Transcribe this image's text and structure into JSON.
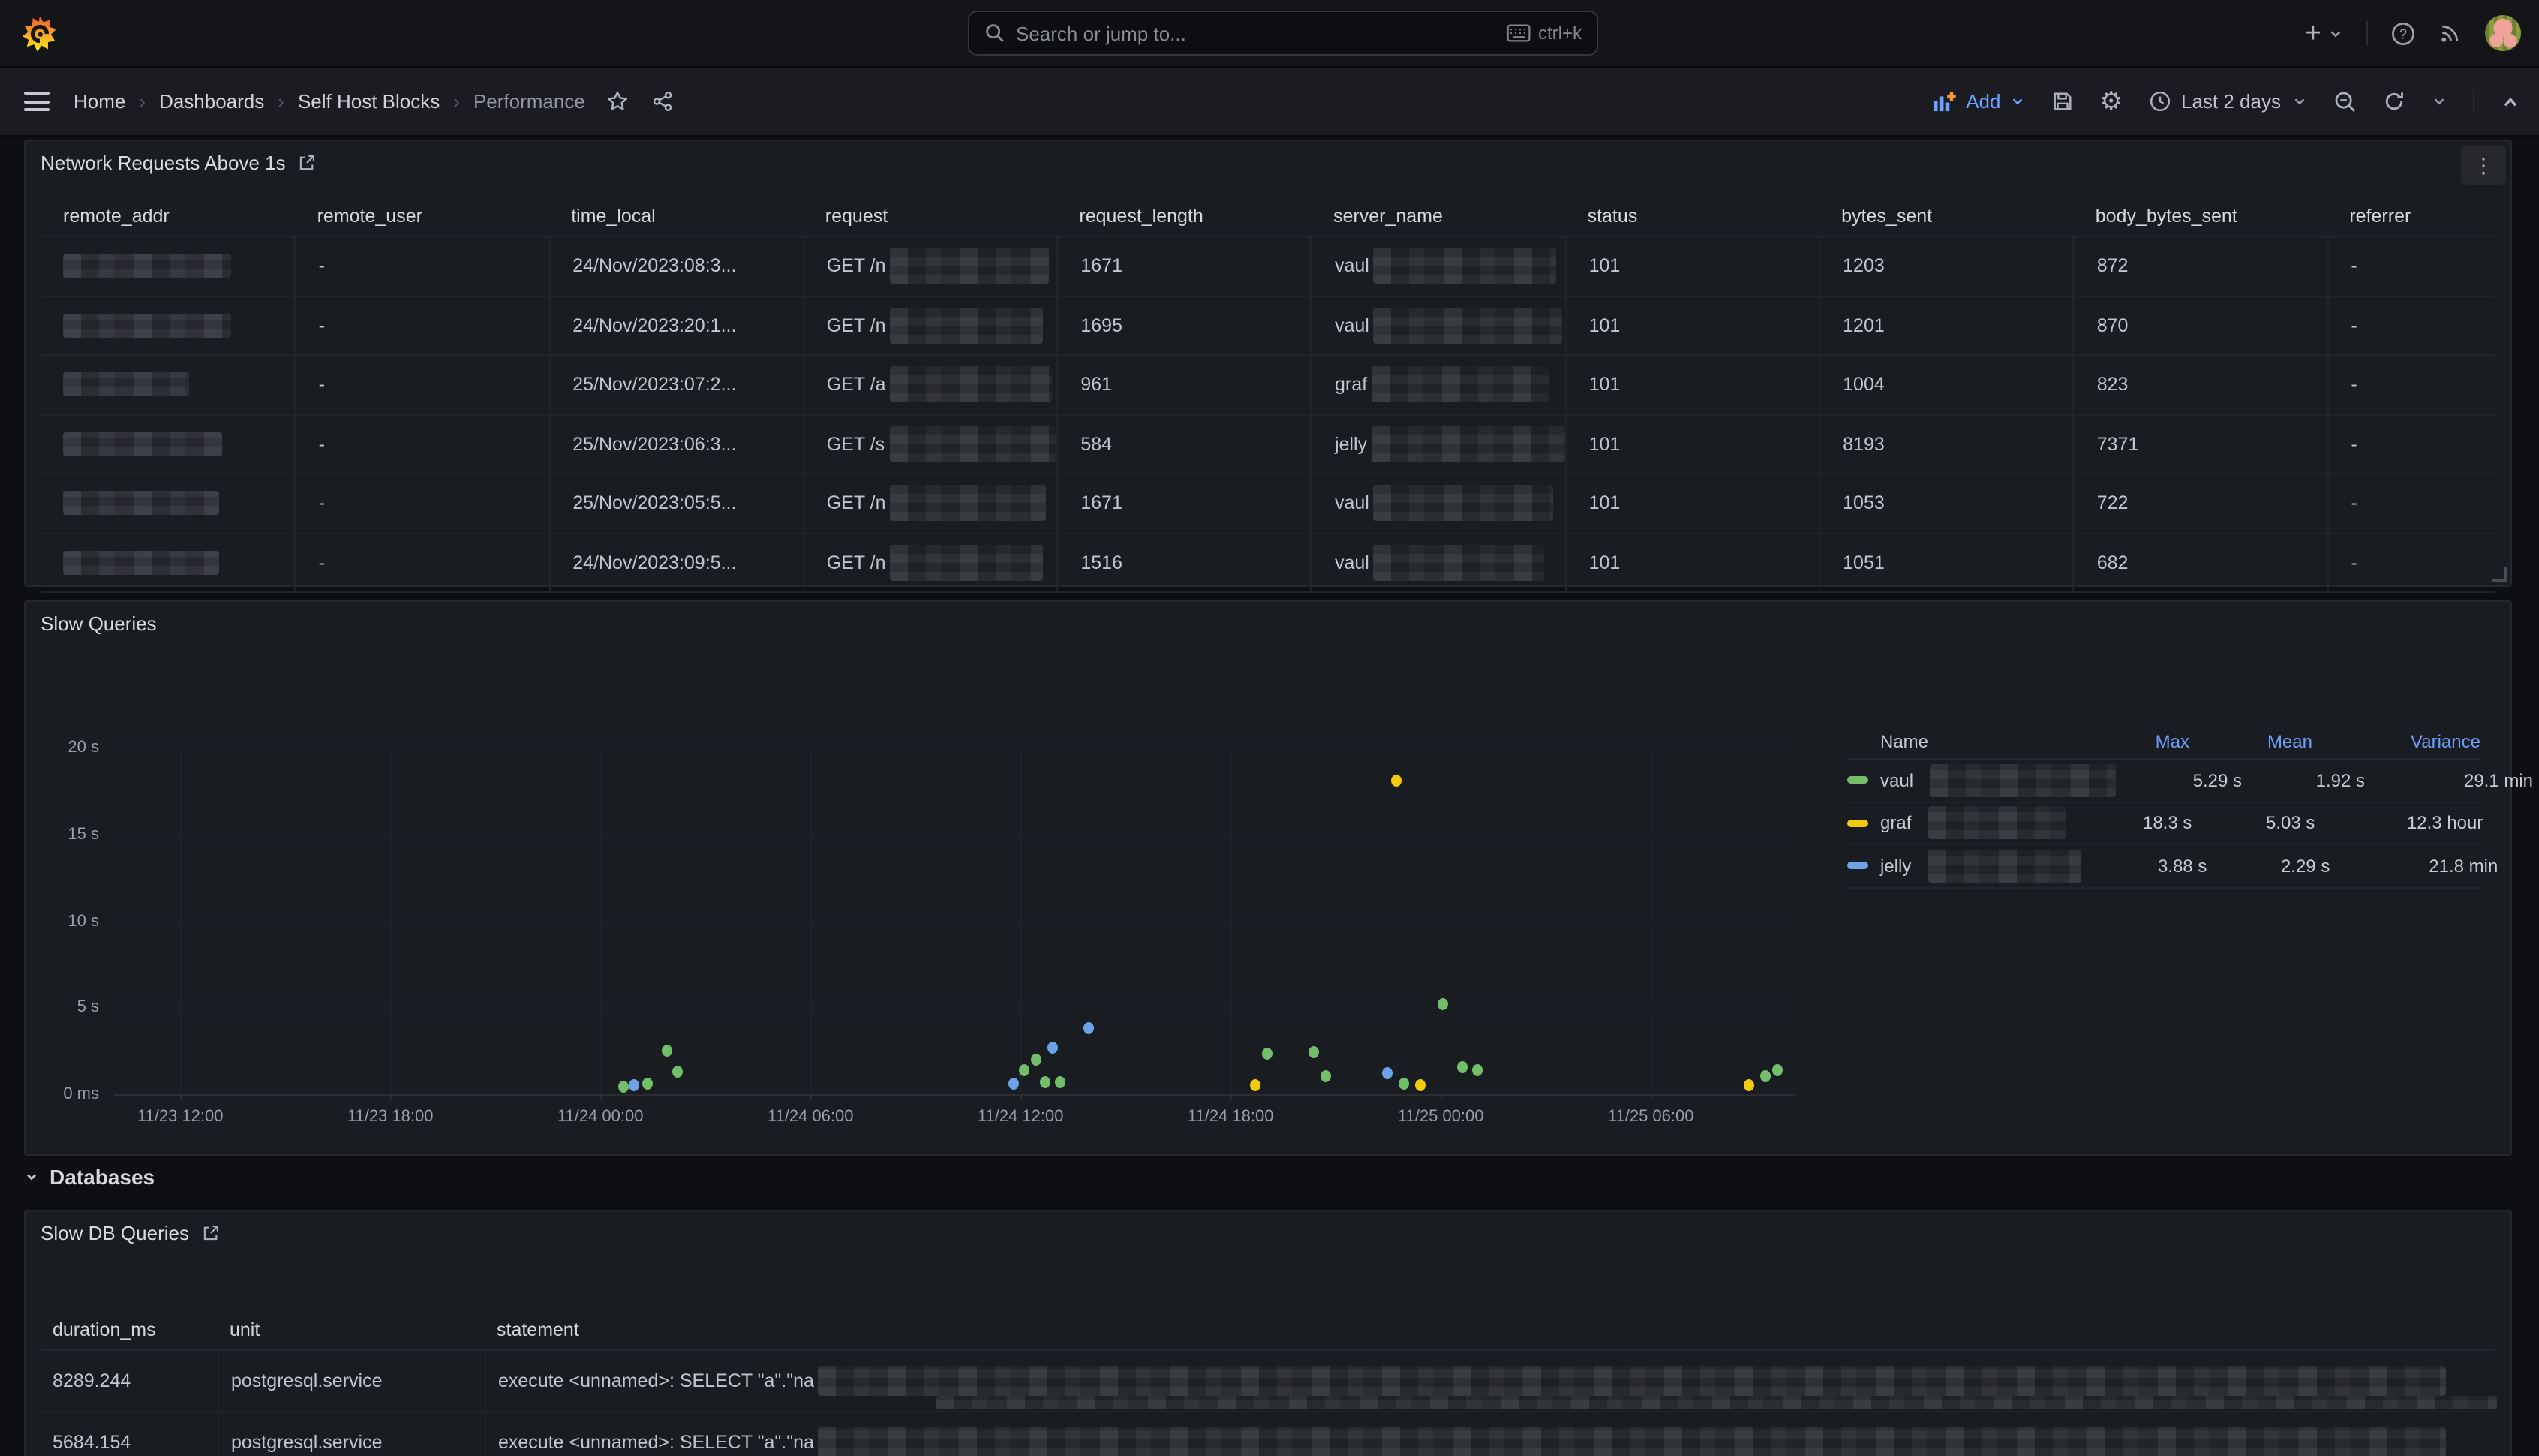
{
  "topbar": {
    "search_placeholder": "Search or jump to...",
    "search_shortcut": "ctrl+k"
  },
  "toolbar": {
    "breadcrumbs": [
      "Home",
      "Dashboards",
      "Self Host Blocks",
      "Performance"
    ],
    "add_label": "Add",
    "time_range": "Last 2 days"
  },
  "network_panel": {
    "title": "Network Requests Above 1s",
    "columns": [
      "remote_addr",
      "remote_user",
      "time_local",
      "request",
      "request_length",
      "server_name",
      "status",
      "bytes_sent",
      "body_bytes_sent",
      "referrer"
    ],
    "rows": [
      {
        "remote_addr_redacted": true,
        "addr_w": 112,
        "remote_user": "-",
        "time_local": "24/Nov/2023:08:3...",
        "request": "GET /n",
        "req_w": 106,
        "request_length": "1671",
        "server_name": "vaul",
        "srv_w": 122,
        "status": "101",
        "bytes_sent": "1203",
        "body_bytes_sent": "872",
        "referrer": "-"
      },
      {
        "remote_addr_redacted": true,
        "addr_w": 112,
        "remote_user": "-",
        "time_local": "24/Nov/2023:20:1...",
        "request": "GET /n",
        "req_w": 102,
        "request_length": "1695",
        "server_name": "vaul",
        "srv_w": 126,
        "status": "101",
        "bytes_sent": "1201",
        "body_bytes_sent": "870",
        "referrer": "-"
      },
      {
        "remote_addr_redacted": true,
        "addr_w": 84,
        "remote_user": "-",
        "time_local": "25/Nov/2023:07:2...",
        "request": "GET /a",
        "req_w": 108,
        "request_length": "961",
        "server_name": "graf",
        "srv_w": 118,
        "status": "101",
        "bytes_sent": "1004",
        "body_bytes_sent": "823",
        "referrer": "-"
      },
      {
        "remote_addr_redacted": true,
        "addr_w": 106,
        "remote_user": "-",
        "time_local": "25/Nov/2023:06:3...",
        "request": "GET /s",
        "req_w": 112,
        "request_length": "584",
        "server_name": "jelly",
        "srv_w": 132,
        "status": "101",
        "bytes_sent": "8193",
        "body_bytes_sent": "7371",
        "referrer": "-"
      },
      {
        "remote_addr_redacted": true,
        "addr_w": 104,
        "remote_user": "-",
        "time_local": "25/Nov/2023:05:5...",
        "request": "GET /n",
        "req_w": 104,
        "request_length": "1671",
        "server_name": "vaul",
        "srv_w": 120,
        "status": "101",
        "bytes_sent": "1053",
        "body_bytes_sent": "722",
        "referrer": "-"
      },
      {
        "remote_addr_redacted": true,
        "addr_w": 104,
        "remote_user": "-",
        "time_local": "24/Nov/2023:09:5...",
        "request": "GET /n",
        "req_w": 102,
        "request_length": "1516",
        "server_name": "vaul",
        "srv_w": 114,
        "status": "101",
        "bytes_sent": "1051",
        "body_bytes_sent": "682",
        "referrer": "-"
      }
    ]
  },
  "slow_queries_panel": {
    "title": "Slow Queries"
  },
  "chart_data": {
    "type": "scatter",
    "title": "Slow Queries",
    "x_ticks": [
      "11/23 12:00",
      "11/23 18:00",
      "11/24 00:00",
      "11/24 06:00",
      "11/24 12:00",
      "11/24 18:00",
      "11/25 00:00",
      "11/25 06:00"
    ],
    "x_range_hours": 48,
    "x_first_tick_offset_hours": 1.89,
    "x_tick_step_hours": 6,
    "y_ticks": [
      "0 ms",
      "5 s",
      "10 s",
      "15 s",
      "20 s"
    ],
    "y_min": 0,
    "y_max_seconds": 20,
    "grid": true,
    "legend_position": "right-top",
    "legend_headers": [
      "Name",
      "Max",
      "Mean",
      "Variance"
    ],
    "series": [
      {
        "name_visible": "vaul",
        "name_redacted": true,
        "legend_blur_w": 124,
        "color": "#73bf69",
        "max": "5.29 s",
        "mean": "1.92 s",
        "variance": "29.1 min",
        "points_hours_seconds": [
          [
            14.55,
            0.45
          ],
          [
            15.25,
            0.6
          ],
          [
            15.8,
            2.5
          ],
          [
            16.1,
            1.3
          ],
          [
            26.0,
            1.4
          ],
          [
            26.35,
            2.0
          ],
          [
            26.6,
            0.7
          ],
          [
            27.0,
            0.65
          ],
          [
            32.95,
            2.35
          ],
          [
            34.25,
            2.4
          ],
          [
            34.6,
            1.0
          ],
          [
            36.85,
            0.6
          ],
          [
            37.95,
            5.2
          ],
          [
            38.5,
            1.6
          ],
          [
            38.95,
            1.4
          ],
          [
            47.15,
            1.0
          ],
          [
            47.5,
            1.4
          ]
        ]
      },
      {
        "name_visible": "graf",
        "name_redacted": true,
        "legend_blur_w": 92,
        "color": "#f2cc0c",
        "max": "18.3 s",
        "mean": "5.03 s",
        "variance": "12.3 hour",
        "points_hours_seconds": [
          [
            32.6,
            0.55
          ],
          [
            36.6,
            18.1
          ],
          [
            37.3,
            0.55
          ],
          [
            46.7,
            0.55
          ]
        ]
      },
      {
        "name_visible": "jelly",
        "name_redacted": true,
        "legend_blur_w": 102,
        "color": "#6ca3e8",
        "max": "3.88 s",
        "mean": "2.29 s",
        "variance": "21.8 min",
        "points_hours_seconds": [
          [
            14.85,
            0.55
          ],
          [
            25.7,
            0.6
          ],
          [
            26.8,
            2.7
          ],
          [
            27.85,
            3.85
          ],
          [
            36.35,
            1.25
          ]
        ]
      }
    ]
  },
  "databases_section": {
    "label": "Databases"
  },
  "slow_db_panel": {
    "title": "Slow DB Queries",
    "columns": [
      "duration_ms",
      "unit",
      "statement"
    ],
    "rows": [
      {
        "duration_ms": "8289.244",
        "unit": "postgresql.service",
        "statement": "execute <unnamed>: SELECT \"a\".\"na",
        "statement_redacted": true,
        "stmt_w": 430
      },
      {
        "duration_ms": "5684.154",
        "unit": "postgresql.service",
        "statement": "execute <unnamed>: SELECT \"a\".\"na",
        "statement_redacted": true,
        "stmt_w": 430
      }
    ]
  }
}
